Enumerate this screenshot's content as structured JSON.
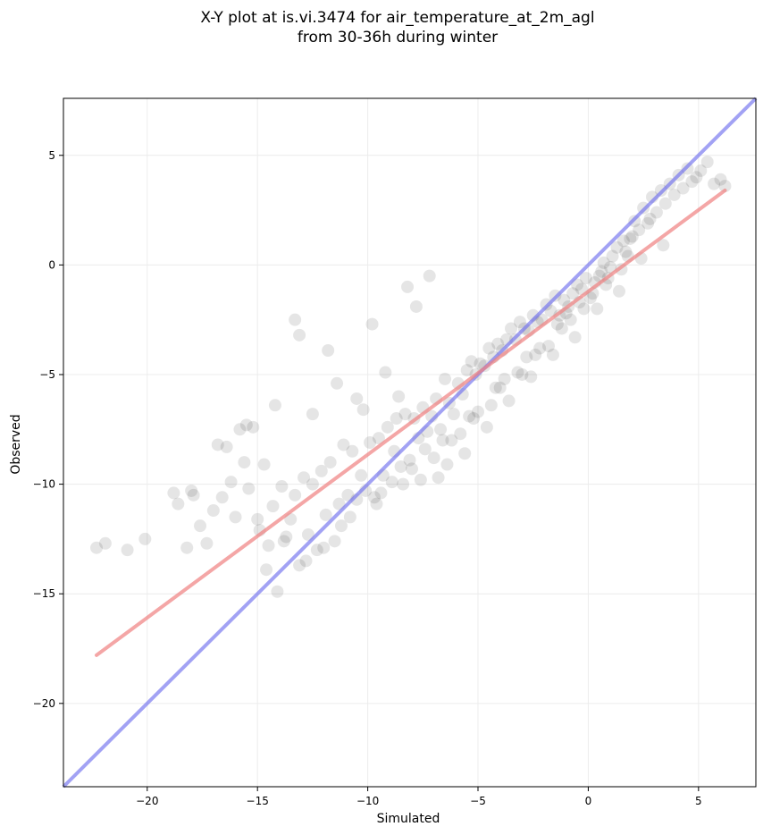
{
  "chart_data": {
    "type": "scatter",
    "title": [
      "X-Y plot at is.vi.3474 for air_temperature_at_2m_agl",
      "from 30-36h during winter"
    ],
    "xlabel": "Simulated",
    "ylabel": "Observed",
    "xlim": [
      -23.8,
      7.6
    ],
    "ylim": [
      -23.8,
      7.6
    ],
    "xticks": [
      -20,
      -15,
      -10,
      -5,
      0,
      5
    ],
    "yticks": [
      -20,
      -15,
      -10,
      -5,
      0,
      5
    ],
    "grid": true,
    "colors": {
      "points": "#000000",
      "regression": "#f08080",
      "identity": "#7070ee"
    },
    "regression_line": {
      "x": [
        -22.3,
        6.2
      ],
      "y": [
        -17.8,
        3.4
      ]
    },
    "identity_line": {
      "x": [
        -23.8,
        7.6
      ],
      "y": [
        -23.8,
        7.6
      ]
    },
    "x": [
      -22.3,
      -21.9,
      -20.9,
      -20.1,
      -18.8,
      -18.6,
      -18.2,
      -18.0,
      -17.9,
      -17.6,
      -17.3,
      -17.0,
      -16.6,
      -16.4,
      -16.2,
      -16.0,
      -15.8,
      -15.6,
      -15.4,
      -15.2,
      -15.0,
      -14.9,
      -14.7,
      -14.5,
      -14.3,
      -14.1,
      -13.9,
      -13.7,
      -13.5,
      -13.3,
      -13.1,
      -12.9,
      -12.7,
      -12.5,
      -12.3,
      -12.1,
      -11.9,
      -11.7,
      -11.5,
      -11.3,
      -11.1,
      -10.9,
      -10.7,
      -10.5,
      -10.3,
      -10.1,
      -9.9,
      -9.7,
      -9.5,
      -9.3,
      -9.1,
      -8.9,
      -8.7,
      -8.5,
      -8.3,
      -8.1,
      -7.9,
      -7.7,
      -7.5,
      -7.3,
      -7.1,
      -6.9,
      -6.7,
      -6.5,
      -6.3,
      -6.1,
      -5.9,
      -5.7,
      -5.5,
      -5.3,
      -5.1,
      -4.9,
      -4.7,
      -4.5,
      -4.3,
      -4.1,
      -3.9,
      -3.7,
      -3.5,
      -3.3,
      -3.1,
      -2.9,
      -2.7,
      -2.5,
      -2.3,
      -2.1,
      -1.9,
      -1.7,
      -1.5,
      -1.3,
      -1.1,
      -0.9,
      -0.7,
      -0.5,
      -0.3,
      -0.1,
      0.1,
      0.3,
      0.5,
      0.7,
      0.9,
      1.1,
      1.3,
      1.5,
      1.7,
      1.9,
      2.1,
      2.3,
      2.5,
      2.7,
      2.9,
      3.1,
      3.3,
      3.5,
      3.7,
      3.9,
      4.1,
      4.3,
      4.5,
      4.7,
      4.9,
      5.1,
      5.4,
      5.7,
      6.0,
      6.2,
      -13.3,
      -13.1,
      -9.8,
      -7.8,
      -7.2,
      -8.2,
      -10.5,
      -11.8,
      -12.5,
      -14.2,
      -15.5,
      -16.8,
      -6.8,
      -5.6,
      -4.6,
      -3.6,
      -2.6,
      -1.6,
      -0.6,
      0.4,
      1.4,
      2.4,
      3.4,
      -9.2,
      -8.6,
      -7.4,
      -6.4,
      -5.2,
      -4.2,
      -3.2,
      -2.2,
      -1.2,
      -0.2,
      0.8,
      1.8,
      2.8,
      -11.4,
      -10.2,
      -8.8,
      -7.6,
      -6.2,
      -5.0,
      -3.8,
      -2.4,
      -1.4,
      -0.4,
      0.6,
      1.6,
      -13.8,
      -12.8,
      -11.2,
      -9.6,
      -8.4,
      -7.0,
      -5.8,
      -4.4,
      -3.0,
      -1.8,
      -0.8,
      0.2,
      -14.6,
      -12.0,
      -10.8,
      -9.4,
      -8.0,
      -6.6,
      -5.4,
      -4.0,
      -2.8,
      -1.0,
      1.0,
      2.0
    ],
    "y": [
      -12.9,
      -12.7,
      -13.0,
      -12.5,
      -10.4,
      -10.9,
      -12.9,
      -10.3,
      -10.5,
      -11.9,
      -12.7,
      -11.2,
      -10.6,
      -8.3,
      -9.9,
      -11.5,
      -7.5,
      -9.0,
      -10.2,
      -7.4,
      -11.6,
      -12.1,
      -9.1,
      -12.8,
      -11.0,
      -14.9,
      -10.1,
      -12.4,
      -11.6,
      -10.5,
      -13.7,
      -9.7,
      -12.3,
      -10.0,
      -13.0,
      -9.4,
      -11.4,
      -9.0,
      -12.6,
      -10.9,
      -8.2,
      -10.5,
      -8.5,
      -10.7,
      -9.6,
      -10.3,
      -8.1,
      -10.6,
      -7.9,
      -9.6,
      -7.4,
      -9.9,
      -7.0,
      -9.2,
      -6.8,
      -8.9,
      -7.0,
      -7.9,
      -6.5,
      -7.6,
      -6.9,
      -6.1,
      -7.5,
      -5.2,
      -6.3,
      -6.8,
      -5.4,
      -5.9,
      -4.8,
      -4.4,
      -5.0,
      -4.5,
      -4.6,
      -3.8,
      -4.2,
      -3.6,
      -3.9,
      -3.4,
      -2.9,
      -3.4,
      -2.6,
      -2.9,
      -3.0,
      -2.3,
      -2.6,
      -2.5,
      -1.8,
      -2.1,
      -1.4,
      -2.3,
      -1.6,
      -1.9,
      -1.3,
      -0.9,
      -1.1,
      -0.6,
      -1.5,
      -0.8,
      -0.5,
      0.1,
      -0.6,
      0.4,
      0.8,
      -0.2,
      0.6,
      1.2,
      2.0,
      1.6,
      2.6,
      1.9,
      3.1,
      2.4,
      3.4,
      2.8,
      3.7,
      3.2,
      4.1,
      3.5,
      4.4,
      3.8,
      4.0,
      4.3,
      4.7,
      3.7,
      3.9,
      3.6,
      -2.5,
      -3.2,
      -2.7,
      -1.9,
      -0.5,
      -1.0,
      -6.1,
      -3.9,
      -6.8,
      -6.4,
      -7.3,
      -8.2,
      -9.7,
      -8.6,
      -7.4,
      -6.2,
      -5.1,
      -4.1,
      -3.3,
      -2.0,
      -1.2,
      0.3,
      0.9,
      -4.9,
      -6.0,
      -8.4,
      -9.1,
      -7.0,
      -5.6,
      -4.9,
      -3.8,
      -2.9,
      -2.0,
      -0.9,
      0.4,
      2.1,
      -5.4,
      -6.6,
      -8.5,
      -9.8,
      -8.0,
      -6.7,
      -5.2,
      -4.1,
      -2.7,
      -1.7,
      -0.3,
      1.1,
      -12.6,
      -13.5,
      -11.9,
      -10.9,
      -10.0,
      -8.8,
      -7.7,
      -6.4,
      -5.0,
      -3.7,
      -2.5,
      -1.3,
      -13.9,
      -12.9,
      -11.5,
      -10.4,
      -9.3,
      -8.0,
      -6.9,
      -5.6,
      -4.2,
      -2.2,
      -0.1,
      1.3
    ]
  }
}
